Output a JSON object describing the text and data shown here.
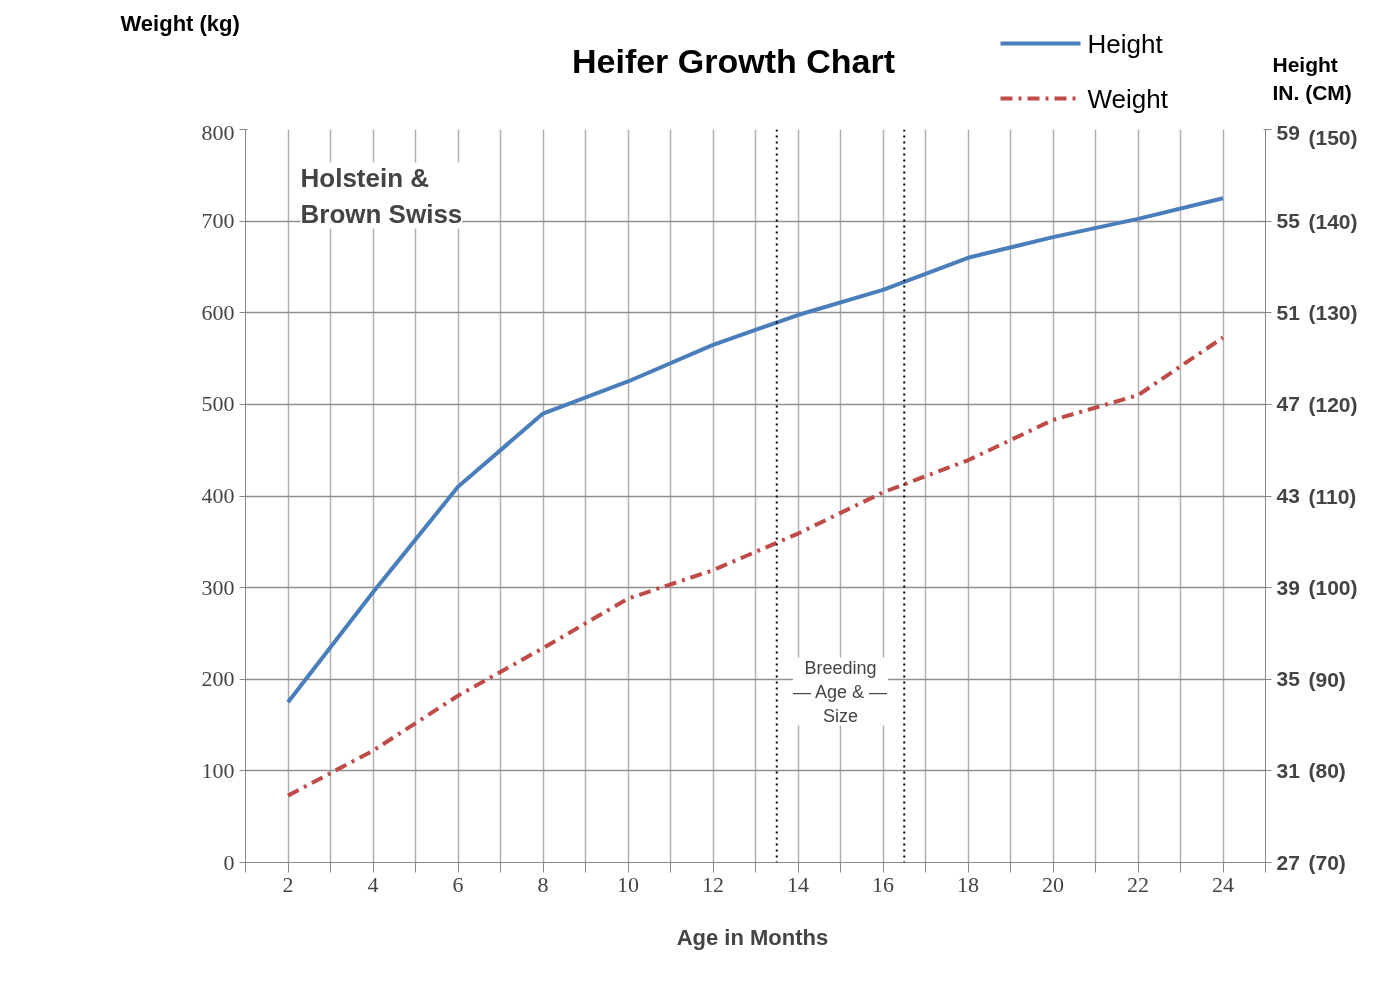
{
  "chart_data": {
    "type": "line",
    "title": "Heifer Growth Chart",
    "xlabel": "Age  in Months",
    "ylabel": "Weight (kg)",
    "y2label": "Height\nIN.   (CM)",
    "x": [
      2,
      4,
      6,
      8,
      10,
      12,
      14,
      16,
      18,
      20,
      22,
      24
    ],
    "series": [
      {
        "name": "Height",
        "color": "#4a7ebb",
        "axis": "y2",
        "line_style": "solid",
        "values": [
          34.0,
          38.8,
          43.4,
          46.6,
          48.0,
          49.6,
          50.9,
          52.0,
          53.4,
          54.3,
          55.1,
          56.0
        ]
      },
      {
        "name": "Weight",
        "color": "#be4b48",
        "line_style": "dashdot",
        "values": [
          73,
          122,
          182,
          234,
          288,
          319,
          359,
          404,
          439,
          483,
          510,
          573
        ]
      }
    ],
    "xlim": [
      1,
      25
    ],
    "xticks": [
      {
        "value": 1,
        "label": null
      },
      2,
      {
        "value": 3,
        "label": null
      },
      4,
      {
        "value": 5,
        "label": null
      },
      6,
      {
        "value": 7,
        "label": null
      },
      8,
      {
        "value": 9,
        "label": null
      },
      10,
      {
        "value": 11,
        "label": null
      },
      12,
      {
        "value": 13,
        "label": null
      },
      14,
      {
        "value": 15,
        "label": null
      },
      16,
      {
        "value": 17,
        "label": null
      },
      18,
      {
        "value": 19,
        "label": null
      },
      20,
      {
        "value": 21,
        "label": null
      },
      22,
      {
        "value": 23,
        "label": null
      },
      24,
      {
        "value": 25,
        "label": null
      }
    ],
    "ylim": [
      0,
      800
    ],
    "yticks": [
      0,
      100,
      200,
      300,
      400,
      500,
      600,
      700,
      800
    ],
    "y2lim": [
      27,
      59
    ],
    "y2ticks": [
      27,
      31,
      35,
      39,
      43,
      47,
      51,
      55,
      59
    ],
    "y3lim": [
      70,
      150
    ],
    "y3ticks": [
      {
        "value": 70,
        "label": "(70)"
      },
      {
        "value": 80,
        "label": "(80)"
      },
      {
        "value": 90,
        "label": "(90)"
      },
      {
        "value": 100,
        "label": "(100)"
      },
      {
        "value": 110,
        "label": "(110)"
      },
      {
        "value": 120,
        "label": "(120)"
      },
      {
        "value": 130,
        "label": "(130)"
      },
      {
        "value": 140,
        "label": "(140)"
      },
      {
        "value": 150,
        "label": "(150)"
      }
    ],
    "ref_lines": [
      {
        "axis": "x",
        "value": 13.5,
        "color": "#000000",
        "line_style": "dotted"
      },
      {
        "axis": "x",
        "value": 16.5,
        "color": "#000000",
        "line_style": "dotted"
      }
    ],
    "annotations": [
      "Holstein &\nBrown Swiss",
      "Breeding\n— Age & —\nSize"
    ],
    "grid": true,
    "legend": "top right",
    "marker": "none"
  }
}
